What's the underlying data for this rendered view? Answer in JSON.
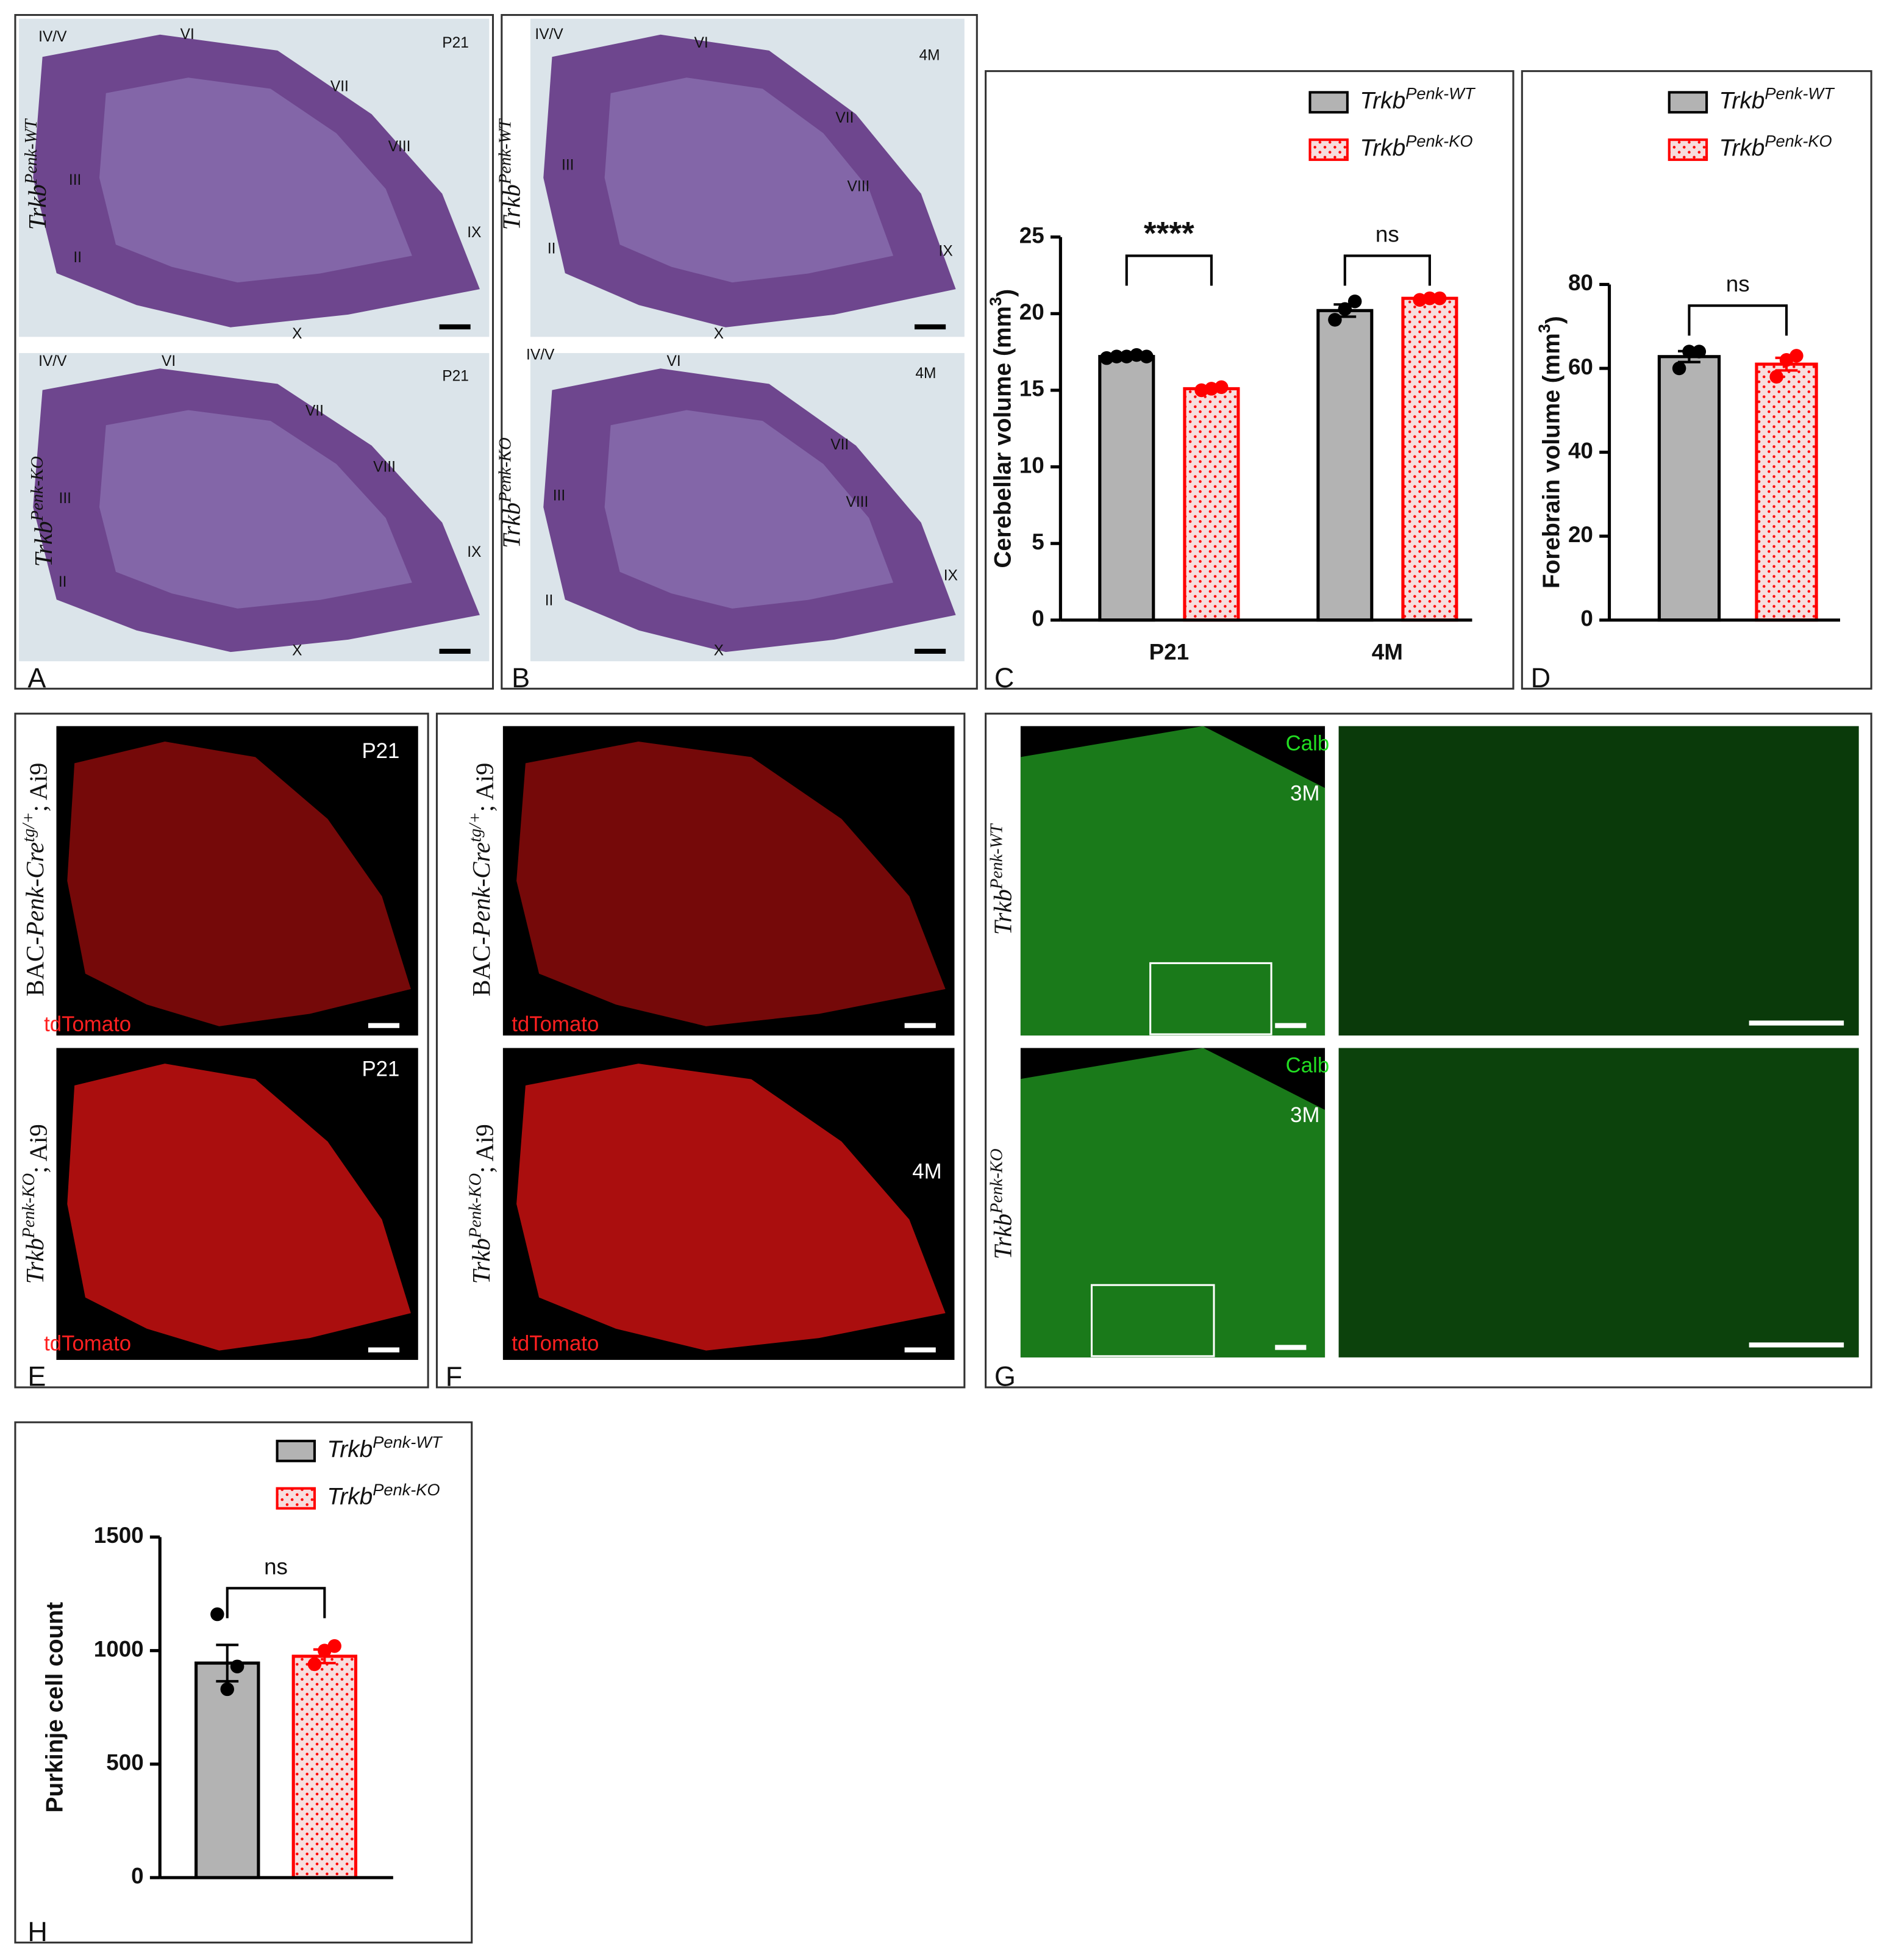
{
  "micrographs": [
    {
      "letter": "A",
      "images": [
        {
          "genotype": [
            {
              "text": "Trkb",
              "italic": true
            },
            {
              "text": "Penk-WT",
              "sup": true,
              "italic": true
            }
          ],
          "labels": [
            "IV/V",
            "VI",
            "VII",
            "VIII",
            "III",
            "IX",
            "II",
            "X",
            "P21"
          ]
        },
        {
          "genotype": [
            {
              "text": "Trkb",
              "italic": true
            },
            {
              "text": "Penk-KO",
              "sup": true,
              "italic": true
            }
          ],
          "labels": [
            "IV/V",
            "VI",
            "VII",
            "VIII",
            "III",
            "IX",
            "II",
            "X",
            "P21"
          ]
        }
      ]
    },
    {
      "letter": "B",
      "images": [
        {
          "genotype": [
            {
              "text": "Trkb",
              "italic": true
            },
            {
              "text": "Penk-WT",
              "sup": true,
              "italic": true
            }
          ],
          "labels": [
            "IV/V",
            "VI",
            "VII",
            "III",
            "VIII",
            "II",
            "IX",
            "X",
            "4M"
          ]
        },
        {
          "genotype": [
            {
              "text": "Trkb",
              "italic": true
            },
            {
              "text": "Penk-KO",
              "sup": true,
              "italic": true
            }
          ],
          "labels": [
            "IV/V",
            "VI",
            "VII",
            "III",
            "VIII",
            "II",
            "IX",
            "X",
            "4M"
          ]
        }
      ]
    },
    {
      "letter": "E",
      "images": [
        {
          "genotype": [
            {
              "text": "BAC-"
            },
            {
              "text": "Penk-Cre",
              "italic": true
            },
            {
              "text": "tg/+",
              "sup": true,
              "italic": true
            },
            {
              "text": "; Ai9"
            }
          ],
          "labels": [
            "P21",
            "tdTomato"
          ]
        },
        {
          "genotype": [
            {
              "text": "Trkb",
              "italic": true
            },
            {
              "text": "Penk-KO",
              "sup": true,
              "italic": true
            },
            {
              "text": "; Ai9"
            }
          ],
          "labels": [
            "P21",
            "tdTomato"
          ]
        }
      ]
    },
    {
      "letter": "F",
      "images": [
        {
          "genotype": [
            {
              "text": "BAC-"
            },
            {
              "text": "Penk-Cre",
              "italic": true
            },
            {
              "text": "tg/+",
              "sup": true,
              "italic": true
            },
            {
              "text": "; Ai9"
            }
          ],
          "labels": [
            "tdTomato"
          ]
        },
        {
          "genotype": [
            {
              "text": "Trkb",
              "italic": true
            },
            {
              "text": "Penk-KO",
              "sup": true,
              "italic": true
            },
            {
              "text": "; Ai9"
            }
          ],
          "labels": [
            "4M",
            "tdTomato"
          ]
        }
      ]
    },
    {
      "letter": "G",
      "images": [
        {
          "genotype": [
            {
              "text": "Trkb",
              "italic": true
            },
            {
              "text": "Penk-WT",
              "sup": true,
              "italic": true
            }
          ],
          "labels": [
            "Calb",
            "3M"
          ]
        },
        {
          "genotype": [
            {
              "text": "Trkb",
              "italic": true
            },
            {
              "text": "Penk-KO",
              "sup": true,
              "italic": true
            }
          ],
          "labels": [
            "Calb",
            "3M"
          ]
        }
      ]
    }
  ],
  "chart_data": [
    {
      "type": "bar",
      "panel": "C",
      "ylabel": [
        {
          "text": "Cerebellar volume (mm"
        },
        {
          "text": "3",
          "sup": true
        },
        {
          "text": ")"
        }
      ],
      "categories": [
        "P21",
        "4M"
      ],
      "annotations": [
        "****",
        "ns"
      ],
      "ylim": [
        0,
        25
      ],
      "yticks": [
        0,
        5,
        10,
        15,
        20,
        25
      ],
      "series": [
        {
          "name": [
            {
              "text": "Trkb",
              "italic": true
            },
            {
              "text": "Penk-WT",
              "sup": true,
              "italic": true
            }
          ],
          "fill": "#b3b3b3",
          "color": "#000000",
          "values": [
            17.2,
            20.2
          ],
          "errors": [
            0.1,
            0.4
          ],
          "points": [
            [
              17.1,
              17.2,
              17.2,
              17.3,
              17.2
            ],
            [
              19.6,
              20.3,
              20.8
            ]
          ]
        },
        {
          "name": [
            {
              "text": "Trkb",
              "italic": true
            },
            {
              "text": "Penk-KO",
              "sup": true,
              "italic": true
            }
          ],
          "fill": "#f7dede",
          "color": "#ff0000",
          "pattern": "dots",
          "values": [
            15.1,
            21.0
          ],
          "errors": [
            0.15,
            0.1
          ],
          "points": [
            [
              15.0,
              15.1,
              15.2
            ],
            [
              20.9,
              21.0,
              21.0
            ]
          ]
        }
      ]
    },
    {
      "type": "bar",
      "panel": "D",
      "ylabel": [
        {
          "text": "Forebrain volume  (mm"
        },
        {
          "text": "3",
          "sup": true
        },
        {
          "text": ")"
        }
      ],
      "categories": [
        null
      ],
      "annotations": [
        "ns"
      ],
      "ylim": [
        0,
        80
      ],
      "yticks": [
        0,
        20,
        40,
        60,
        80
      ],
      "series": [
        {
          "name": [
            {
              "text": "Trkb",
              "italic": true
            },
            {
              "text": "Penk-WT",
              "sup": true,
              "italic": true
            }
          ],
          "fill": "#b3b3b3",
          "color": "#000000",
          "values": [
            62.8
          ],
          "errors": [
            1.3
          ],
          "points": [
            [
              60,
              64,
              64
            ]
          ]
        },
        {
          "name": [
            {
              "text": "Trkb",
              "italic": true
            },
            {
              "text": "Penk-KO",
              "sup": true,
              "italic": true
            }
          ],
          "fill": "#f7dede",
          "color": "#ff0000",
          "pattern": "dots",
          "values": [
            61.0
          ],
          "errors": [
            1.5
          ],
          "points": [
            [
              58,
              62,
              63
            ]
          ]
        }
      ]
    },
    {
      "type": "bar",
      "panel": "H",
      "ylabel": [
        {
          "text": "Purkinje cell count"
        }
      ],
      "categories": [
        null
      ],
      "annotations": [
        "ns"
      ],
      "ylim": [
        0,
        1500
      ],
      "yticks": [
        0,
        500,
        1000,
        1500
      ],
      "series": [
        {
          "name": [
            {
              "text": "Trkb",
              "italic": true
            },
            {
              "text": "Penk-WT",
              "sup": true,
              "italic": true
            }
          ],
          "fill": "#b3b3b3",
          "color": "#000000",
          "values": [
            945
          ],
          "errors": [
            80
          ],
          "points": [
            [
              1160,
              830,
              930
            ]
          ]
        },
        {
          "name": [
            {
              "text": "Trkb",
              "italic": true
            },
            {
              "text": "Penk-KO",
              "sup": true,
              "italic": true
            }
          ],
          "fill": "#f7dede",
          "color": "#ff0000",
          "pattern": "dots",
          "values": [
            975
          ],
          "errors": [
            30
          ],
          "points": [
            [
              940,
              1000,
              1020
            ]
          ]
        }
      ]
    }
  ]
}
